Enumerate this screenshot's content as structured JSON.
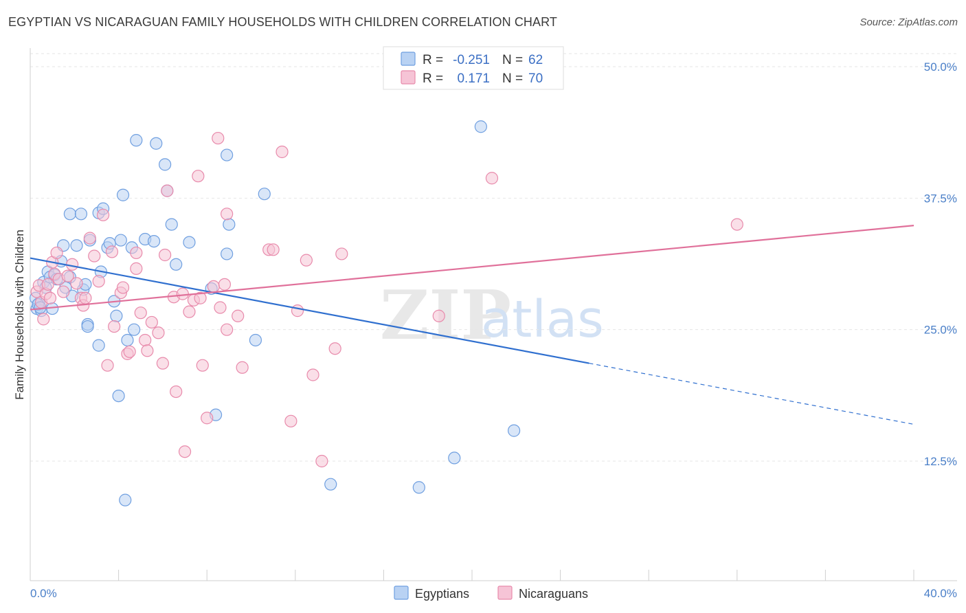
{
  "title": "EGYPTIAN VS NICARAGUAN FAMILY HOUSEHOLDS WITH CHILDREN CORRELATION CHART",
  "source": "Source: ZipAtlas.com",
  "watermark": {
    "zip": "ZIP",
    "atlas": "atlas"
  },
  "colors": {
    "egyptians": "#6f9fe0",
    "egyptians_fill": "#b9d2f3",
    "egyptians_line": "#2f6fcf",
    "nicaraguans": "#e88aab",
    "nicaraguans_fill": "#f6c4d6",
    "nicaraguans_line": "#e0709a",
    "tick_label": "#4a7fc8"
  },
  "legend_box": {
    "rows": [
      {
        "r_label": "R =",
        "r_value": "-0.251",
        "n_label": "N =",
        "n_value": "62"
      },
      {
        "r_label": "R =",
        "r_value": "0.171",
        "n_label": "N =",
        "n_value": "70"
      }
    ]
  },
  "bottom_legend": {
    "egyptians": "Egyptians",
    "nicaraguans": "Nicaraguans"
  },
  "chart_data": {
    "type": "scatter",
    "title": "EGYPTIAN VS NICARAGUAN FAMILY HOUSEHOLDS WITH CHILDREN CORRELATION CHART",
    "xlabel": "",
    "ylabel": "Family Households with Children",
    "xlim": [
      0,
      40
    ],
    "ylim": [
      0,
      52
    ],
    "x_tick_labels": [
      "0.0%",
      "40.0%"
    ],
    "y_ticks": [
      12.5,
      25.0,
      37.5,
      50.0
    ],
    "y_tick_labels": [
      "12.5%",
      "25.0%",
      "37.5%",
      "50.0%"
    ],
    "grid": true,
    "series": [
      {
        "name": "Egyptians",
        "r": -0.251,
        "n": 62,
        "trend": {
          "x0": 0,
          "y0": 31.8,
          "x1": 40,
          "y1": 16.0,
          "solid_until_x": 25.3
        },
        "points": [
          [
            0.3,
            27.0
          ],
          [
            0.4,
            27.5
          ],
          [
            0.5,
            26.8
          ],
          [
            0.6,
            29.5
          ],
          [
            0.7,
            29.0
          ],
          [
            0.8,
            30.5
          ],
          [
            0.9,
            30.0
          ],
          [
            1.0,
            27.0
          ],
          [
            1.1,
            30.2
          ],
          [
            1.2,
            29.8
          ],
          [
            1.4,
            31.5
          ],
          [
            1.5,
            33.0
          ],
          [
            1.6,
            29.0
          ],
          [
            1.8,
            30.0
          ],
          [
            1.8,
            36.0
          ],
          [
            1.9,
            28.2
          ],
          [
            2.1,
            33.0
          ],
          [
            2.3,
            36.0
          ],
          [
            2.4,
            28.8
          ],
          [
            2.5,
            29.3
          ],
          [
            2.6,
            25.5
          ],
          [
            2.6,
            25.3
          ],
          [
            2.7,
            33.5
          ],
          [
            3.1,
            36.1
          ],
          [
            3.1,
            23.5
          ],
          [
            3.2,
            30.5
          ],
          [
            3.3,
            36.5
          ],
          [
            3.5,
            32.8
          ],
          [
            3.6,
            33.2
          ],
          [
            3.8,
            27.7
          ],
          [
            3.9,
            26.3
          ],
          [
            4.0,
            18.7
          ],
          [
            4.1,
            33.5
          ],
          [
            4.2,
            37.8
          ],
          [
            4.3,
            8.8
          ],
          [
            4.4,
            24.0
          ],
          [
            4.6,
            32.8
          ],
          [
            4.7,
            25.0
          ],
          [
            4.8,
            43.0
          ],
          [
            5.2,
            33.6
          ],
          [
            5.6,
            33.4
          ],
          [
            5.7,
            42.7
          ],
          [
            6.1,
            40.7
          ],
          [
            6.2,
            38.2
          ],
          [
            6.4,
            35.0
          ],
          [
            6.6,
            31.2
          ],
          [
            7.2,
            33.3
          ],
          [
            8.2,
            28.9
          ],
          [
            8.4,
            16.9
          ],
          [
            8.9,
            32.2
          ],
          [
            8.9,
            41.6
          ],
          [
            9.0,
            35.0
          ],
          [
            10.2,
            24.0
          ],
          [
            10.6,
            37.9
          ],
          [
            13.6,
            10.3
          ],
          [
            17.6,
            10.0
          ],
          [
            19.2,
            12.8
          ],
          [
            20.4,
            44.3
          ],
          [
            21.9,
            15.4
          ],
          [
            0.25,
            28.0
          ],
          [
            0.35,
            27.4
          ],
          [
            0.45,
            27.1
          ]
        ]
      },
      {
        "name": "Nicaraguans",
        "r": 0.171,
        "n": 70,
        "trend": {
          "x0": 0,
          "y0": 26.9,
          "x1": 40,
          "y1": 34.9,
          "solid_until_x": 40
        },
        "points": [
          [
            0.3,
            28.6
          ],
          [
            0.4,
            29.2
          ],
          [
            0.5,
            27.6
          ],
          [
            0.6,
            26.0
          ],
          [
            0.7,
            28.4
          ],
          [
            0.8,
            29.3
          ],
          [
            0.9,
            28.0
          ],
          [
            1.0,
            31.4
          ],
          [
            1.1,
            30.3
          ],
          [
            1.2,
            32.3
          ],
          [
            1.3,
            29.8
          ],
          [
            1.5,
            28.6
          ],
          [
            1.7,
            30.1
          ],
          [
            1.9,
            31.2
          ],
          [
            2.1,
            29.4
          ],
          [
            2.3,
            28.0
          ],
          [
            2.4,
            27.3
          ],
          [
            2.5,
            28.0
          ],
          [
            2.7,
            33.7
          ],
          [
            2.9,
            32.0
          ],
          [
            3.1,
            29.6
          ],
          [
            3.3,
            35.9
          ],
          [
            3.5,
            21.6
          ],
          [
            3.7,
            32.4
          ],
          [
            3.8,
            25.3
          ],
          [
            4.1,
            28.5
          ],
          [
            4.2,
            29.0
          ],
          [
            4.4,
            22.7
          ],
          [
            4.5,
            22.9
          ],
          [
            4.8,
            30.8
          ],
          [
            4.8,
            32.3
          ],
          [
            5.0,
            26.6
          ],
          [
            5.2,
            24.0
          ],
          [
            5.3,
            23.0
          ],
          [
            5.5,
            25.7
          ],
          [
            5.8,
            24.7
          ],
          [
            6.0,
            21.8
          ],
          [
            6.1,
            32.1
          ],
          [
            6.2,
            38.2
          ],
          [
            6.5,
            28.1
          ],
          [
            6.6,
            19.1
          ],
          [
            6.9,
            28.4
          ],
          [
            7.0,
            13.4
          ],
          [
            7.2,
            26.7
          ],
          [
            7.4,
            27.8
          ],
          [
            7.6,
            39.6
          ],
          [
            7.7,
            28.0
          ],
          [
            7.8,
            21.6
          ],
          [
            8.0,
            16.6
          ],
          [
            8.3,
            29.1
          ],
          [
            8.5,
            43.2
          ],
          [
            8.6,
            27.1
          ],
          [
            8.8,
            29.3
          ],
          [
            8.9,
            25.0
          ],
          [
            8.9,
            36.0
          ],
          [
            9.4,
            26.3
          ],
          [
            9.6,
            21.4
          ],
          [
            10.8,
            32.6
          ],
          [
            11.0,
            32.6
          ],
          [
            11.4,
            41.9
          ],
          [
            11.8,
            16.3
          ],
          [
            12.1,
            26.8
          ],
          [
            12.5,
            31.6
          ],
          [
            12.8,
            20.7
          ],
          [
            13.2,
            12.5
          ],
          [
            13.8,
            23.2
          ],
          [
            14.1,
            32.2
          ],
          [
            18.5,
            26.3
          ],
          [
            20.9,
            39.4
          ],
          [
            32.0,
            35.0
          ]
        ]
      }
    ]
  }
}
